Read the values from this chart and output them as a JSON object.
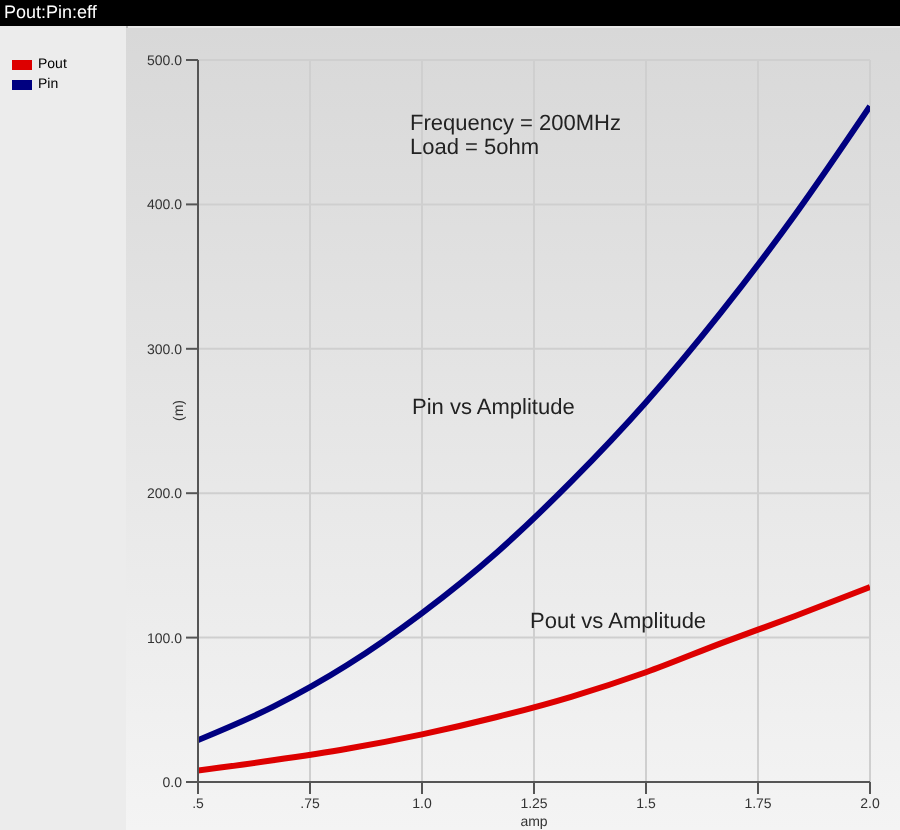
{
  "chart_data": {
    "type": "line",
    "title": "Pout:Pin:eff",
    "xlabel": "amp",
    "ylabel": "(m)",
    "x": [
      0.5,
      0.667,
      0.833,
      1.0,
      1.167,
      1.333,
      1.5,
      1.667,
      1.833,
      2.0
    ],
    "series": [
      {
        "name": "Pout",
        "color": "#dd0000",
        "values": [
          8,
          15,
          23,
          33,
          45,
          59,
          76,
          96,
          115,
          135
        ]
      },
      {
        "name": "Pin",
        "color": "#000080",
        "values": [
          29,
          52,
          81,
          117,
          159,
          208,
          263,
          325,
          393,
          468
        ]
      }
    ],
    "xlim": [
      0.5,
      2.0
    ],
    "xticks": [
      {
        "value": 0.5,
        "label": ".5"
      },
      {
        "value": 0.75,
        "label": ".75"
      },
      {
        "value": 1.0,
        "label": "1.0"
      },
      {
        "value": 1.25,
        "label": "1.25"
      },
      {
        "value": 1.5,
        "label": "1.5"
      },
      {
        "value": 1.75,
        "label": "1.75"
      },
      {
        "value": 2.0,
        "label": "2.0"
      }
    ],
    "ylim": [
      0,
      500
    ],
    "yticks": [
      {
        "value": 0,
        "label": "0.0"
      },
      {
        "value": 100,
        "label": "100.0"
      },
      {
        "value": 200,
        "label": "200.0"
      },
      {
        "value": 300,
        "label": "300.0"
      },
      {
        "value": 400,
        "label": "400.0"
      },
      {
        "value": 500,
        "label": "500.0"
      }
    ],
    "annotations": [
      "Frequency = 200MHz",
      "Load = 5ohm",
      "Pin vs Amplitude",
      "Pout vs Amplitude"
    ],
    "grid": true,
    "legend": "left",
    "marker": "none",
    "line_style": "solid"
  }
}
